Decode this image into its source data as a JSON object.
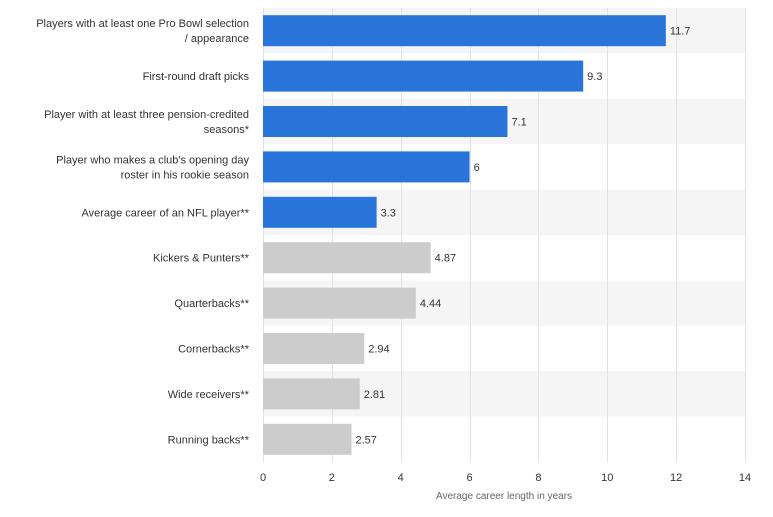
{
  "chart_data": {
    "type": "bar",
    "orientation": "horizontal",
    "title": "",
    "xlabel": "Average career length in years",
    "ylabel": "",
    "xlim": [
      0,
      14
    ],
    "xticks": [
      0,
      2,
      4,
      6,
      8,
      10,
      12,
      14
    ],
    "grid": "vertical",
    "legend": "none",
    "categories": [
      [
        "Players with at least one Pro Bowl selection",
        "/ appearance"
      ],
      [
        "First-round draft picks"
      ],
      [
        "Player with at least three pension-credited",
        "seasons*"
      ],
      [
        "Player who makes a club's opening day",
        "roster in his rookie season"
      ],
      [
        "Average career of an NFL player**"
      ],
      [
        "Kickers & Punters**"
      ],
      [
        "Quarterbacks**"
      ],
      [
        "Cornerbacks**"
      ],
      [
        "Wide receivers**"
      ],
      [
        "Running backs**"
      ]
    ],
    "values": [
      11.7,
      9.3,
      7.1,
      6,
      3.3,
      4.87,
      4.44,
      2.94,
      2.81,
      2.57
    ],
    "value_labels": [
      "11.7",
      "9.3",
      "7.1",
      "6",
      "3.3",
      "4.87",
      "4.44",
      "2.94",
      "2.81",
      "2.57"
    ],
    "colors": [
      "#2874d8",
      "#2874d8",
      "#2874d8",
      "#2874d8",
      "#2874d8",
      "#cccccc",
      "#cccccc",
      "#cccccc",
      "#cccccc",
      "#cccccc"
    ],
    "band_color": "#f5f5f5",
    "grid_color": "#e2e2e2"
  }
}
